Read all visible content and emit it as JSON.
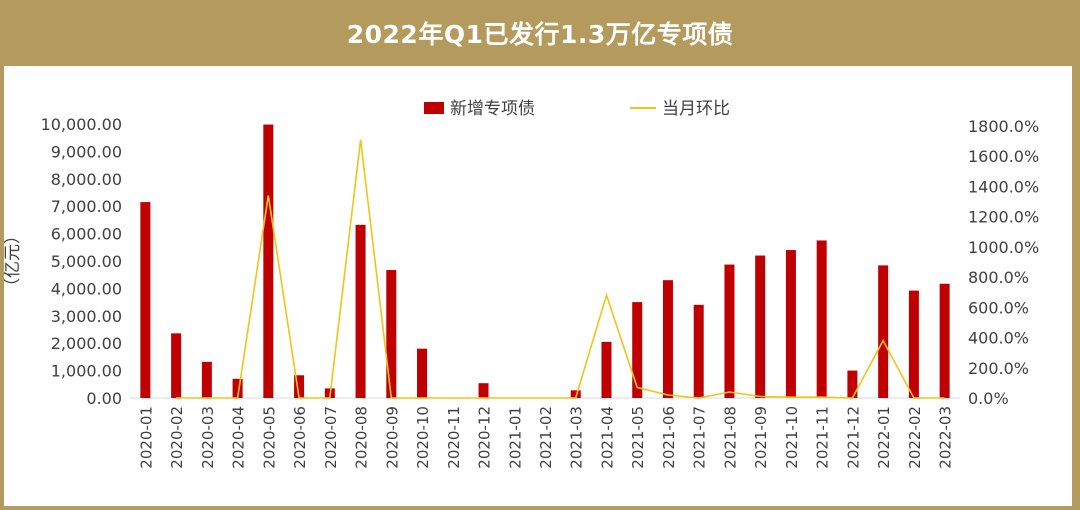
{
  "title": "2022年Q1已发行1.3万亿专项债",
  "chart_data": {
    "type": "bar",
    "categories": [
      "2020-01",
      "2020-02",
      "2020-03",
      "2020-04",
      "2020-05",
      "2020-06",
      "2020-07",
      "2020-08",
      "2020-09",
      "2020-10",
      "2020-11",
      "2020-12",
      "2021-01",
      "2021-02",
      "2021-03",
      "2021-04",
      "2021-05",
      "2021-06",
      "2021-07",
      "2021-08",
      "2021-09",
      "2021-10",
      "2021-11",
      "2021-12",
      "2022-01",
      "2022-02",
      "2022-03"
    ],
    "series": [
      {
        "name": "新增专项债",
        "type": "bar",
        "axis": "left",
        "color": "#c00000",
        "values": [
          7150,
          2360,
          1320,
          700,
          9980,
          830,
          350,
          6320,
          4670,
          1800,
          0,
          540,
          0,
          0,
          280,
          2050,
          3500,
          4300,
          3400,
          4870,
          5200,
          5400,
          5750,
          1000,
          4840,
          3920,
          4170
        ]
      },
      {
        "name": "当月环比",
        "type": "line",
        "axis": "right",
        "color": "#f2c318",
        "values": [
          null,
          0,
          0,
          0,
          1340,
          0,
          0,
          1710,
          0,
          0,
          0,
          0,
          0,
          0,
          0,
          680,
          70,
          20,
          0,
          40,
          10,
          5,
          5,
          0,
          380,
          0,
          0
        ]
      }
    ],
    "yleft": {
      "label": "（亿元）",
      "ylim": [
        0,
        10000
      ],
      "ticks": [
        "0.00",
        "1,000.00",
        "2,000.00",
        "3,000.00",
        "4,000.00",
        "5,000.00",
        "6,000.00",
        "7,000.00",
        "8,000.00",
        "9,000.00",
        "10,000.00"
      ]
    },
    "yright": {
      "ylim": [
        0,
        1800
      ],
      "ticks": [
        "0.0%",
        "200.0%",
        "400.0%",
        "600.0%",
        "800.0%",
        "1000.0%",
        "1200.0%",
        "1400.0%",
        "1600.0%",
        "1800.0%"
      ]
    },
    "legend": "top-center",
    "grid": false
  }
}
